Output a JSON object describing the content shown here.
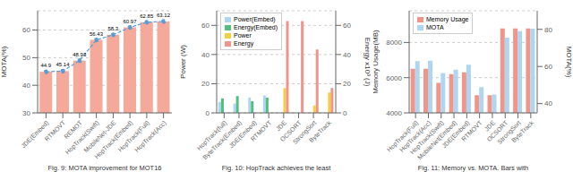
{
  "chart_data": [
    {
      "type": "bar",
      "xlabel": "Fig. 9: MOTA improvement for MOT16",
      "ylabel": "MOTA(%)",
      "categories": [
        "JDE(Embed)",
        "RTMOVT",
        "REMOT",
        "HopTrack(Swift)",
        "MobileNet-JDE",
        "HopTrack(Embed)",
        "HopTrack(Full)",
        "HopTrack(Acc)"
      ],
      "series": [
        {
          "type": "bar",
          "color": "#F4A99A",
          "values": [
            44.9,
            45.14,
            48.93,
            56.43,
            58.3,
            60.97,
            62.85,
            63.12
          ]
        },
        {
          "type": "line",
          "color": "#5B9BD5",
          "marker": "circle",
          "line_style": "dashed",
          "values": [
            44.9,
            45.14,
            48.93,
            56.43,
            58.3,
            60.97,
            62.85,
            63.12
          ]
        }
      ],
      "ylim": [
        30,
        67
      ],
      "yticks": [
        30,
        40,
        50,
        60
      ],
      "grid": true,
      "data_labels": true
    },
    {
      "type": "bar",
      "xlabel": "Fig. 10: HopTrack achieves the least",
      "ylabel": "Power (W)",
      "y2label": "Energy x10³ (J)",
      "categories": [
        "HopTrack(full)",
        "ByteTrack(Embed)",
        "JDE(Embed)",
        "RTMOVT",
        "JDE",
        "OCSORT",
        "StrongSort",
        "ByteTrack"
      ],
      "series": [
        {
          "name": "Power(Embed)",
          "color": "#AED6F1",
          "values": [
            7.5,
            6.5,
            10.5,
            12.0,
            0,
            0,
            0,
            0
          ]
        },
        {
          "name": "Energy(Embed)",
          "color": "#52BE80",
          "values": [
            10.0,
            11.5,
            8.0,
            10.5,
            0,
            0,
            0,
            0
          ]
        },
        {
          "name": "Power",
          "color": "#F4D03F",
          "values": [
            0,
            0,
            0,
            0,
            17.0,
            0,
            5.0,
            14.0
          ]
        },
        {
          "name": "Energy",
          "color": "#F1948A",
          "axis": "y2",
          "values": [
            0,
            0,
            0,
            0,
            63.0,
            63.0,
            43.5,
            17.0
          ]
        }
      ],
      "ylim": [
        0,
        70
      ],
      "yticks": [
        0,
        20,
        40,
        60
      ],
      "y2lim": [
        0,
        70
      ],
      "y2ticks": [
        0,
        20,
        40,
        60
      ],
      "grid": true,
      "legend": "upper left"
    },
    {
      "type": "bar",
      "xlabel": "Fig. 11: Memory vs. MOTA. Bars with",
      "ylabel": "Memory Usage(MB)",
      "y2label": "MOTA(%)",
      "categories": [
        "HopTrack(Full)",
        "HopTrack(Acc)",
        "HopTrack(Swift)",
        "MobileNet(Embed)",
        "JDE(Embed)",
        "RTMOVT",
        "JDE",
        "OCSORT",
        "StrongSort",
        "ByteTrack"
      ],
      "series": [
        {
          "name": "Memory Usage",
          "color": "#F1948A",
          "values": [
            6500,
            6500,
            5700,
            6200,
            6300,
            5000,
            5000,
            8800,
            8800,
            8800
          ]
        },
        {
          "name": "MOTA",
          "color": "#AED6F1",
          "axis": "y2",
          "values": [
            62.85,
            63.12,
            56.43,
            58.3,
            60.97,
            48.93,
            44.9,
            75.5,
            79.0,
            80.3
          ]
        }
      ],
      "ylim": [
        4000,
        9800
      ],
      "yticks": [
        4000,
        6000,
        8000
      ],
      "y2lim": [
        35,
        90
      ],
      "y2ticks": [
        40,
        60,
        80
      ],
      "grid": true,
      "legend": "upper left"
    }
  ]
}
